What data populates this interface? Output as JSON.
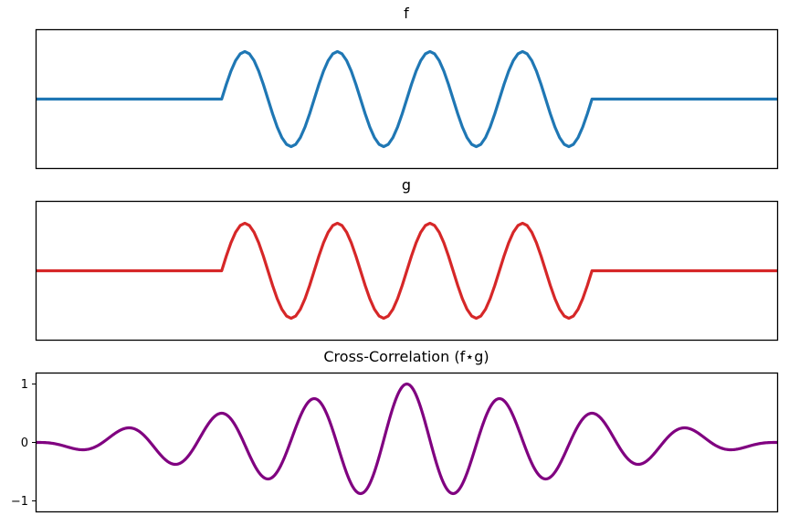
{
  "chart_data": [
    {
      "type": "line",
      "title": "f",
      "xlabel": "",
      "ylabel": "",
      "x_ticks": false,
      "y_ticks": false,
      "xlim": [
        -10,
        10
      ],
      "ylim": [
        -1.45,
        1.45
      ],
      "series": [
        {
          "color": "#1f77b4",
          "piecewise": "sin(2*pi*0.4*x) for |x| <= 5, else 0",
          "sample_x": [
            -10,
            -6,
            -5,
            -4.375,
            -3.125,
            -1.875,
            -0.625,
            0.625,
            1.875,
            3.125,
            4.375,
            5,
            6,
            10
          ],
          "sample_y": [
            0,
            0,
            0,
            1,
            -1,
            1,
            -1,
            1,
            -1,
            1,
            -1,
            0,
            0,
            0
          ]
        }
      ]
    },
    {
      "type": "line",
      "title": "g",
      "xlabel": "",
      "ylabel": "",
      "x_ticks": false,
      "y_ticks": false,
      "xlim": [
        -10,
        10
      ],
      "ylim": [
        -1.45,
        1.45
      ],
      "series": [
        {
          "color": "#d62728",
          "piecewise": "sin(2*pi*0.4*x) for |x| <= 5, else 0",
          "sample_x": [
            -10,
            -6,
            -5,
            -4.375,
            -3.125,
            -1.875,
            -0.625,
            0.625,
            1.875,
            3.125,
            4.375,
            5,
            6,
            10
          ],
          "sample_y": [
            0,
            0,
            0,
            1,
            -1,
            1,
            -1,
            1,
            -1,
            1,
            -1,
            0,
            0,
            0
          ]
        }
      ]
    },
    {
      "type": "line",
      "title": "Cross-Correlation (f⋆g)",
      "xlabel": "",
      "ylabel": "",
      "x_ticks": false,
      "yticks": [
        1,
        0,
        -1
      ],
      "ytick_labels": [
        "1",
        "0",
        "−1"
      ],
      "xlim": [
        -10,
        10
      ],
      "ylim": [
        -1.18,
        1.18
      ],
      "series": [
        {
          "color": "#800080",
          "normalized": true,
          "peaks_x": [
            0,
            -1.25,
            1.25,
            -2.5,
            2.5,
            -3.75,
            3.75,
            -5,
            5,
            -6.25,
            6.25
          ],
          "peaks_y": [
            1.0,
            -0.9,
            -0.9,
            0.8,
            0.8,
            -0.7,
            -0.7,
            0.6,
            0.6,
            -0.5,
            -0.5
          ],
          "support": [
            -10,
            10
          ]
        }
      ]
    }
  ]
}
